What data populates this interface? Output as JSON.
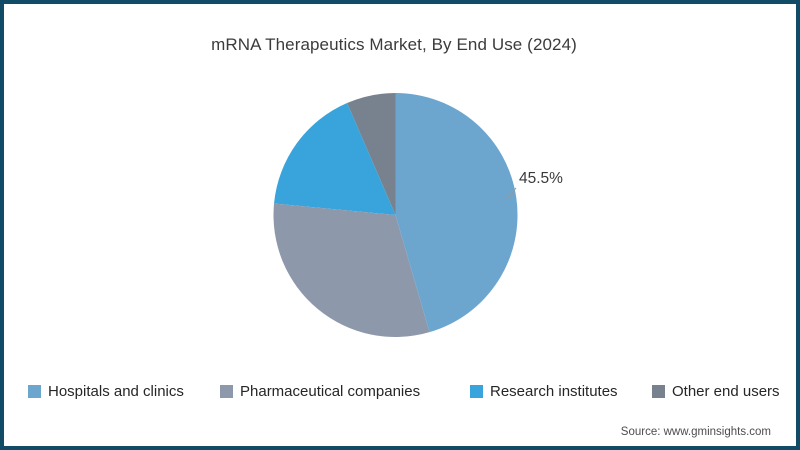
{
  "title": "mRNA Therapeutics Market, By End Use (2024)",
  "chart_data": {
    "type": "pie",
    "title": "mRNA Therapeutics Market, By End Use (2024)",
    "categories": [
      "Hospitals and clinics",
      "Pharmaceutical companies",
      "Research institutes",
      "Other end users"
    ],
    "values": [
      45.5,
      31.0,
      17.0,
      6.5
    ],
    "unit": "%",
    "colors": [
      "#6CA6CE",
      "#8D99AB",
      "#39A3DC",
      "#78828F"
    ],
    "visible_data_labels": [
      {
        "category": "Hospitals and clinics",
        "label": "45.5%"
      }
    ],
    "start_angle": "12-oclock-clockwise",
    "legend_position": "bottom"
  },
  "percent_label": "45.5%",
  "legend": {
    "items": [
      {
        "label": "Hospitals and clinics",
        "color": "#6CA6CE"
      },
      {
        "label": "Pharmaceutical companies",
        "color": "#8D99AB"
      },
      {
        "label": "Research institutes",
        "color": "#39A3DC"
      },
      {
        "label": "Other end users",
        "color": "#78828F"
      }
    ]
  },
  "source": "Source: www.gminsights.com",
  "frame": {
    "border_color": "#114B66"
  }
}
